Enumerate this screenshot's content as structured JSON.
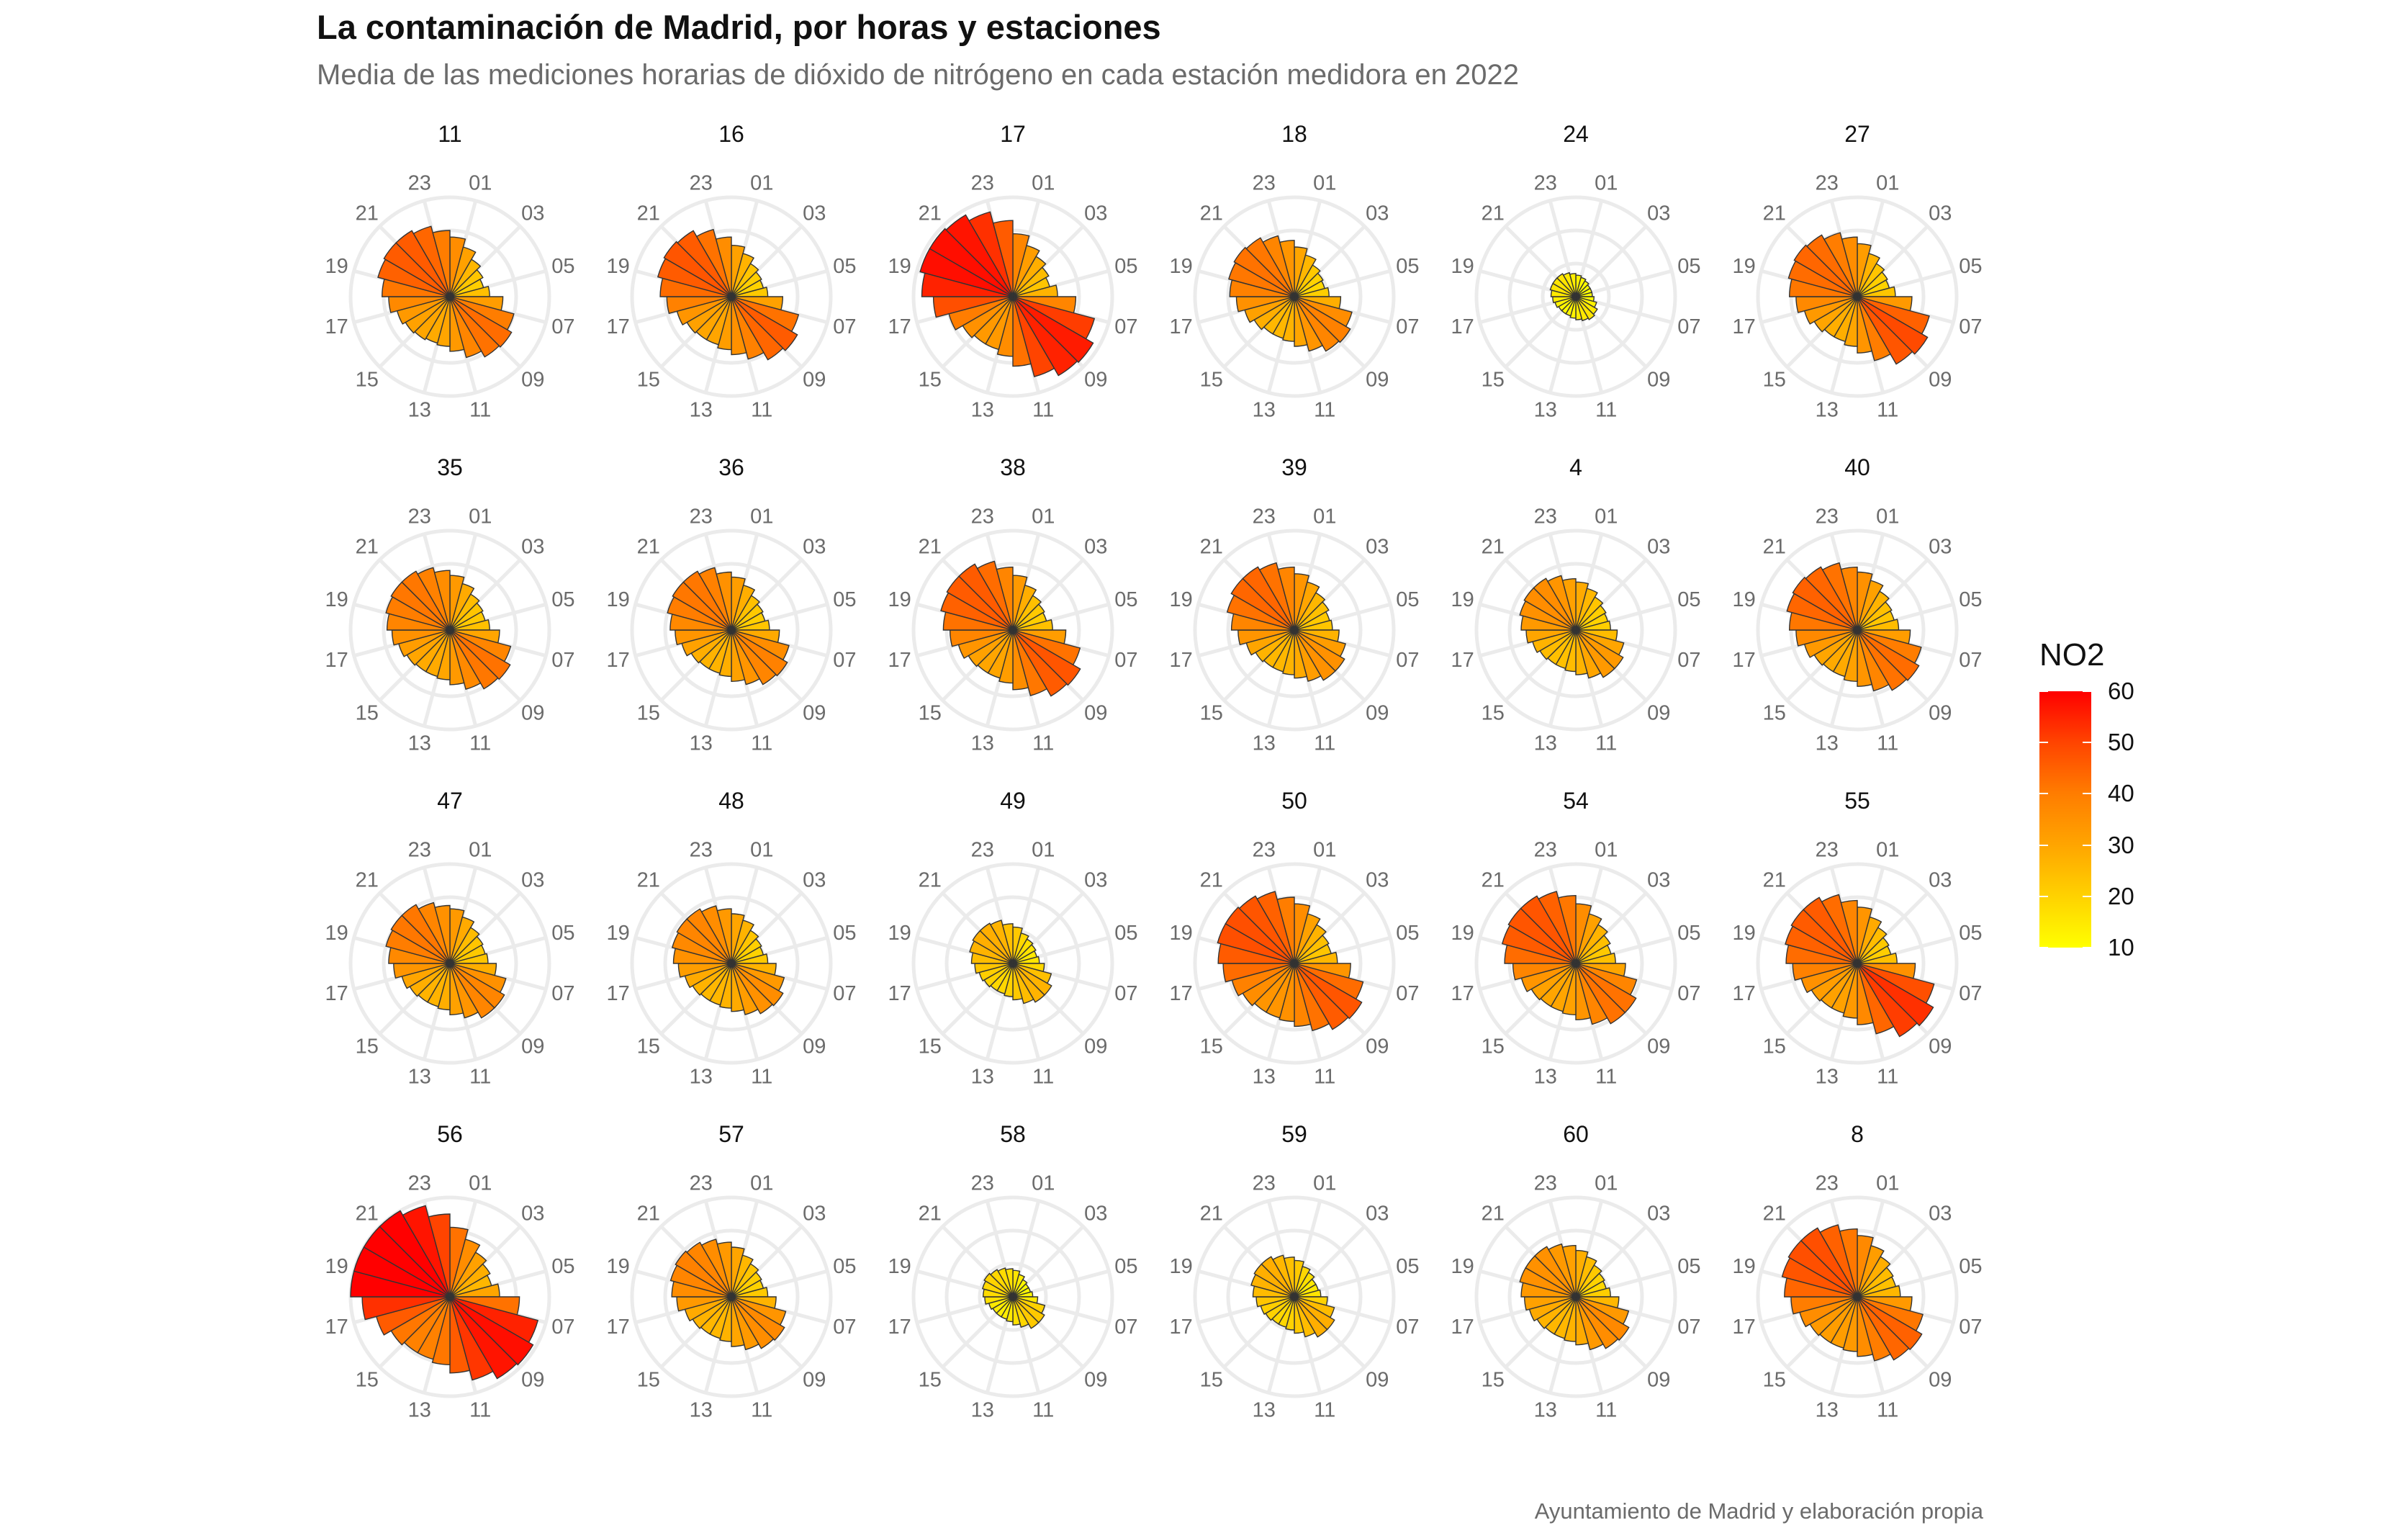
{
  "title": "La contaminación de Madrid, por horas y estaciones",
  "subtitle": "Media de las mediciones horarias de dióxido de nitrógeno en cada estación medidora en 2022",
  "caption": "Ayuntamiento de Madrid y elaboración propia",
  "chart_data": {
    "type": "polar_bar_facets",
    "angular_tick_labels": [
      "01",
      "03",
      "05",
      "07",
      "09",
      "11",
      "13",
      "15",
      "17",
      "19",
      "21",
      "23"
    ],
    "hours": [
      0,
      1,
      2,
      3,
      4,
      5,
      6,
      7,
      8,
      9,
      10,
      11,
      12,
      13,
      14,
      15,
      16,
      17,
      18,
      19,
      20,
      21,
      22,
      23
    ],
    "radial_max": 60,
    "fill_scale": {
      "name": "NO2",
      "min": 10,
      "max": 60,
      "ticks": [
        10,
        20,
        30,
        40,
        50,
        60
      ],
      "low_color": "#ffff00",
      "high_color": "#ff0000"
    },
    "grid": true,
    "grid_color": "#ebebeb",
    "bar_outline_color": "#333333",
    "legend_position": "right",
    "facets": [
      {
        "station": "11",
        "values": [
          36,
          31,
          26,
          23,
          21,
          24,
          32,
          40,
          43,
          42,
          38,
          33,
          30,
          29,
          30,
          31,
          33,
          37,
          41,
          45,
          46,
          46,
          44,
          40
        ]
      },
      {
        "station": "16",
        "values": [
          31,
          27,
          23,
          21,
          20,
          22,
          31,
          42,
          46,
          44,
          39,
          35,
          32,
          30,
          30,
          31,
          34,
          39,
          43,
          46,
          47,
          46,
          42,
          36
        ]
      },
      {
        "station": "17",
        "values": [
          38,
          32,
          28,
          25,
          23,
          27,
          38,
          51,
          56,
          55,
          50,
          42,
          36,
          33,
          33,
          35,
          40,
          48,
          55,
          58,
          58,
          57,
          53,
          46
        ]
      },
      {
        "station": "18",
        "values": [
          30,
          26,
          22,
          20,
          19,
          21,
          28,
          36,
          39,
          38,
          34,
          30,
          27,
          26,
          26,
          28,
          31,
          35,
          39,
          41,
          42,
          41,
          38,
          34
        ]
      },
      {
        "station": "24",
        "values": [
          13,
          12,
          11,
          10,
          10,
          10,
          11,
          13,
          15,
          16,
          15,
          14,
          13,
          12,
          12,
          12,
          13,
          14,
          15,
          16,
          16,
          16,
          15,
          14
        ]
      },
      {
        "station": "27",
        "values": [
          32,
          27,
          23,
          21,
          20,
          23,
          33,
          45,
          49,
          47,
          40,
          34,
          30,
          28,
          28,
          30,
          33,
          37,
          41,
          43,
          44,
          43,
          40,
          36
        ]
      },
      {
        "station": "35",
        "values": [
          33,
          29,
          25,
          23,
          22,
          24,
          30,
          38,
          42,
          41,
          37,
          33,
          30,
          29,
          29,
          30,
          32,
          35,
          38,
          40,
          41,
          41,
          39,
          36
        ]
      },
      {
        "station": "36",
        "values": [
          32,
          28,
          24,
          22,
          21,
          23,
          29,
          36,
          39,
          38,
          34,
          31,
          28,
          27,
          27,
          28,
          31,
          34,
          37,
          40,
          41,
          41,
          39,
          35
        ]
      },
      {
        "station": "38",
        "values": [
          33,
          28,
          24,
          22,
          21,
          24,
          32,
          42,
          47,
          46,
          41,
          36,
          32,
          30,
          30,
          31,
          34,
          38,
          42,
          45,
          46,
          46,
          43,
          38
        ]
      },
      {
        "station": "39",
        "values": [
          34,
          30,
          26,
          24,
          22,
          23,
          27,
          32,
          35,
          35,
          32,
          29,
          27,
          26,
          26,
          27,
          30,
          34,
          38,
          42,
          44,
          44,
          42,
          38
        ]
      },
      {
        "station": "4",
        "values": [
          29,
          26,
          23,
          21,
          20,
          21,
          25,
          30,
          33,
          33,
          30,
          27,
          25,
          24,
          24,
          25,
          27,
          30,
          33,
          35,
          36,
          36,
          34,
          31
        ]
      },
      {
        "station": "40",
        "values": [
          35,
          31,
          27,
          24,
          23,
          25,
          32,
          40,
          43,
          42,
          38,
          34,
          31,
          29,
          29,
          30,
          33,
          37,
          41,
          44,
          45,
          44,
          42,
          38
        ]
      },
      {
        "station": "47",
        "values": [
          33,
          29,
          25,
          23,
          22,
          23,
          28,
          35,
          38,
          38,
          34,
          31,
          28,
          27,
          27,
          28,
          30,
          34,
          37,
          40,
          41,
          41,
          38,
          35
        ]
      },
      {
        "station": "48",
        "values": [
          30,
          27,
          23,
          21,
          20,
          22,
          27,
          33,
          36,
          35,
          32,
          29,
          27,
          26,
          26,
          27,
          29,
          32,
          35,
          37,
          38,
          38,
          36,
          33
        ]
      },
      {
        "station": "49",
        "values": [
          22,
          19,
          17,
          16,
          15,
          16,
          19,
          24,
          27,
          27,
          25,
          22,
          20,
          19,
          19,
          20,
          21,
          23,
          25,
          27,
          28,
          28,
          27,
          24
        ]
      },
      {
        "station": "50",
        "values": [
          36,
          31,
          27,
          24,
          23,
          26,
          34,
          43,
          47,
          46,
          42,
          38,
          35,
          34,
          34,
          36,
          39,
          43,
          46,
          48,
          48,
          47,
          45,
          40
        ]
      },
      {
        "station": "54",
        "values": [
          36,
          31,
          27,
          24,
          22,
          24,
          30,
          38,
          42,
          42,
          38,
          34,
          31,
          30,
          30,
          31,
          34,
          38,
          43,
          46,
          47,
          47,
          45,
          41
        ]
      },
      {
        "station": "55",
        "values": [
          34,
          29,
          25,
          22,
          21,
          24,
          35,
          48,
          53,
          51,
          44,
          37,
          33,
          31,
          31,
          32,
          35,
          39,
          43,
          45,
          46,
          46,
          43,
          38
        ]
      },
      {
        "station": "56",
        "values": [
          42,
          36,
          31,
          28,
          26,
          30,
          42,
          55,
          58,
          57,
          52,
          46,
          41,
          39,
          39,
          41,
          46,
          53,
          60,
          64,
          64,
          62,
          57,
          50
        ]
      },
      {
        "station": "57",
        "values": [
          30,
          26,
          23,
          21,
          20,
          22,
          27,
          34,
          37,
          36,
          33,
          30,
          27,
          26,
          26,
          27,
          29,
          33,
          36,
          38,
          39,
          38,
          36,
          33
        ]
      },
      {
        "station": "58",
        "values": [
          16,
          14,
          12,
          11,
          11,
          12,
          15,
          20,
          22,
          22,
          19,
          17,
          15,
          14,
          14,
          14,
          15,
          17,
          18,
          19,
          20,
          19,
          18,
          17
        ]
      },
      {
        "station": "59",
        "values": [
          22,
          19,
          17,
          15,
          15,
          16,
          20,
          25,
          28,
          28,
          25,
          22,
          20,
          19,
          19,
          20,
          21,
          23,
          25,
          27,
          28,
          28,
          26,
          24
        ]
      },
      {
        "station": "60",
        "values": [
          28,
          25,
          22,
          20,
          19,
          21,
          26,
          33,
          37,
          36,
          33,
          29,
          27,
          26,
          26,
          27,
          29,
          31,
          33,
          35,
          35,
          35,
          33,
          31
        ]
      },
      {
        "station": "8",
        "values": [
          37,
          32,
          28,
          25,
          24,
          26,
          33,
          41,
          45,
          44,
          40,
          36,
          33,
          32,
          32,
          33,
          36,
          40,
          44,
          47,
          48,
          48,
          45,
          41
        ]
      }
    ]
  }
}
